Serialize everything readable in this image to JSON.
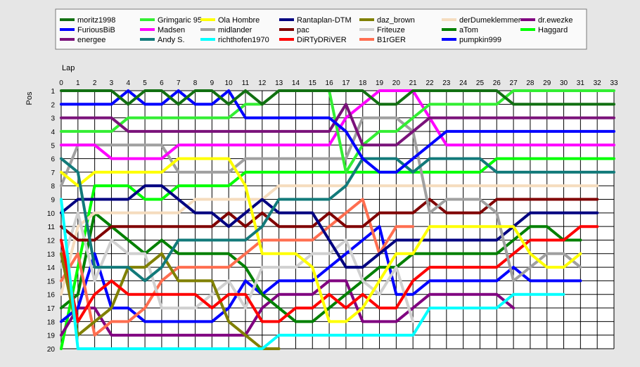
{
  "chart_data": {
    "type": "line",
    "xlabel": "Lap",
    "ylabel": "Pos",
    "x": [
      0,
      1,
      2,
      3,
      4,
      5,
      6,
      7,
      8,
      9,
      10,
      11,
      12,
      13,
      14,
      15,
      16,
      17,
      18,
      19,
      20,
      21,
      22,
      23,
      24,
      25,
      26,
      27,
      28,
      29,
      30,
      31,
      32,
      33
    ],
    "xlim": [
      0,
      33
    ],
    "ylim": [
      1,
      20
    ],
    "y_inverted": true,
    "y_ticks": [
      1,
      2,
      3,
      4,
      5,
      6,
      7,
      8,
      9,
      10,
      11,
      12,
      13,
      14,
      15,
      16,
      17,
      18,
      19,
      20
    ],
    "grid": true,
    "legend_position": "top",
    "series": [
      {
        "name": "moritz1998",
        "color": "#127012",
        "values": [
          1,
          1,
          1,
          1,
          2,
          1,
          1,
          2,
          1,
          1,
          2,
          1,
          2,
          1,
          1,
          1,
          1,
          1,
          1,
          2,
          2,
          1,
          1,
          1,
          1,
          1,
          1,
          2,
          2,
          2,
          2,
          2,
          2,
          2
        ]
      },
      {
        "name": "FuriousBiB",
        "color": "#0000ff",
        "values": [
          2,
          2,
          2,
          2,
          1,
          2,
          2,
          1,
          2,
          2,
          1,
          3,
          3,
          3,
          3,
          3,
          3,
          4,
          6,
          7,
          7,
          6,
          5,
          4,
          4,
          4,
          4,
          4,
          4,
          4,
          4,
          4,
          4,
          4
        ]
      },
      {
        "name": "energee",
        "color": "#7a127a",
        "values": [
          3,
          3,
          3,
          3,
          4,
          4,
          4,
          4,
          4,
          4,
          4,
          4,
          4,
          4,
          4,
          4,
          4,
          2,
          5,
          5,
          5,
          4,
          3,
          3,
          3,
          3,
          3,
          3,
          3,
          3,
          3,
          3,
          3,
          3
        ]
      },
      {
        "name": "Grimgaric 95",
        "color": "#33ee33",
        "values": [
          4,
          4,
          4,
          4,
          3,
          3,
          3,
          3,
          3,
          3,
          3,
          2,
          2,
          1,
          1,
          1,
          1,
          7,
          5,
          4,
          4,
          3,
          2,
          2,
          2,
          2,
          2,
          1,
          1,
          1,
          1,
          1,
          1,
          1
        ]
      },
      {
        "name": "Madsen",
        "color": "#ff00ff",
        "values": [
          5,
          5,
          5,
          6,
          6,
          6,
          6,
          5,
          5,
          5,
          5,
          5,
          5,
          5,
          5,
          5,
          5,
          3,
          2,
          1,
          1,
          1,
          3,
          5,
          5,
          5,
          5,
          5,
          5,
          5,
          5,
          5,
          5,
          5
        ]
      },
      {
        "name": "Andy S.",
        "color": "#127a7a",
        "values": [
          6,
          7,
          14,
          14,
          14,
          15,
          14,
          12,
          12,
          12,
          12,
          12,
          11,
          9,
          9,
          9,
          9,
          8,
          6,
          6,
          6,
          7,
          6,
          6,
          6,
          6,
          7,
          7,
          7,
          7,
          7,
          7,
          7,
          7
        ]
      },
      {
        "name": "Ola Hombre",
        "color": "#ffff00",
        "values": [
          7,
          8,
          7,
          7,
          7,
          7,
          7,
          6,
          6,
          6,
          6,
          8,
          13,
          13,
          13,
          14,
          18,
          18,
          17,
          15,
          13,
          13,
          11,
          11,
          11,
          11,
          11,
          11,
          13,
          14,
          14,
          13,
          null,
          null
        ]
      },
      {
        "name": "midlander",
        "color": "#a0a0a0",
        "values": [
          8,
          5,
          5,
          5,
          5,
          5,
          5,
          7,
          7,
          7,
          7,
          6,
          6,
          6,
          6,
          6,
          6,
          6,
          3,
          3,
          3,
          4,
          10,
          9,
          9,
          9,
          10,
          15,
          14,
          13,
          13,
          14,
          null,
          null
        ]
      },
      {
        "name": "richthofen1970",
        "color": "#00ffff",
        "values": [
          9,
          20,
          20,
          20,
          20,
          20,
          20,
          20,
          20,
          20,
          20,
          20,
          20,
          19,
          19,
          19,
          19,
          19,
          19,
          19,
          19,
          19,
          17,
          17,
          17,
          17,
          17,
          16,
          16,
          16,
          16,
          null,
          null,
          null
        ]
      },
      {
        "name": "Rantaplan-DTM",
        "color": "#000080",
        "values": [
          10,
          9,
          9,
          9,
          9,
          8,
          8,
          9,
          10,
          10,
          11,
          10,
          9,
          10,
          10,
          10,
          12,
          14,
          14,
          13,
          12,
          12,
          12,
          12,
          12,
          12,
          12,
          11,
          10,
          10,
          10,
          10,
          10,
          null
        ]
      },
      {
        "name": "pac",
        "color": "#800000",
        "values": [
          11,
          12,
          12,
          11,
          11,
          11,
          11,
          11,
          11,
          11,
          10,
          11,
          10,
          11,
          11,
          11,
          10,
          11,
          11,
          10,
          10,
          10,
          9,
          10,
          10,
          10,
          9,
          9,
          9,
          9,
          9,
          9,
          9,
          null
        ]
      },
      {
        "name": "DiRTyDRiVER",
        "color": "#ff0000",
        "values": [
          12,
          18,
          16,
          15,
          16,
          16,
          16,
          16,
          16,
          17,
          16,
          16,
          18,
          18,
          17,
          17,
          16,
          17,
          16,
          17,
          17,
          15,
          14,
          14,
          14,
          14,
          14,
          13,
          12,
          12,
          12,
          11,
          11,
          null
        ]
      },
      {
        "name": "daz_brown",
        "color": "#808000",
        "values": [
          13,
          19,
          18,
          17,
          14,
          14,
          13,
          15,
          15,
          15,
          18,
          19,
          20,
          20,
          null,
          null,
          null,
          null,
          null,
          null,
          null,
          null,
          null,
          null,
          null,
          null,
          null,
          null,
          null,
          null,
          null,
          null,
          null,
          null
        ]
      },
      {
        "name": "Friteuze",
        "color": "#d0d0d0",
        "values": [
          14,
          10,
          15,
          12,
          13,
          13,
          17,
          17,
          17,
          16,
          15,
          17,
          14,
          14,
          14,
          13,
          13,
          12,
          15,
          16,
          14,
          18,
          null,
          null,
          null,
          null,
          null,
          null,
          null,
          null,
          null,
          null,
          null,
          null
        ]
      },
      {
        "name": "B1rGER",
        "color": "#ff6e50",
        "values": [
          15,
          13,
          19,
          18,
          18,
          17,
          15,
          14,
          14,
          14,
          14,
          13,
          12,
          12,
          12,
          12,
          11,
          10,
          9,
          13,
          11,
          11,
          null,
          null,
          null,
          null,
          null,
          null,
          null,
          null,
          null,
          null,
          null,
          null
        ]
      },
      {
        "name": "derDumeklemmer",
        "color": "#f5dcbe",
        "values": [
          16,
          11,
          10,
          10,
          10,
          10,
          10,
          10,
          9,
          9,
          9,
          9,
          9,
          8,
          8,
          8,
          8,
          8,
          8,
          8,
          8,
          8,
          8,
          8,
          8,
          8,
          8,
          8,
          8,
          8,
          8,
          8,
          8,
          null
        ]
      },
      {
        "name": "aTom",
        "color": "#008000",
        "values": [
          17,
          16,
          10,
          11,
          12,
          13,
          12,
          13,
          13,
          13,
          13,
          14,
          16,
          17,
          18,
          18,
          17,
          16,
          15,
          14,
          14,
          13,
          13,
          13,
          13,
          13,
          13,
          12,
          11,
          11,
          12,
          12,
          null,
          null
        ]
      },
      {
        "name": "pumpkin999",
        "color": "#0000ff",
        "values": [
          18,
          17,
          13,
          17,
          17,
          18,
          18,
          18,
          18,
          18,
          17,
          15,
          16,
          15,
          15,
          15,
          14,
          13,
          12,
          11,
          16,
          16,
          15,
          15,
          15,
          15,
          15,
          14,
          15,
          15,
          15,
          15,
          null,
          null
        ]
      },
      {
        "name": "dr.ewezke",
        "color": "#800080",
        "values": [
          19,
          17,
          17,
          19,
          19,
          19,
          19,
          19,
          19,
          19,
          19,
          19,
          17,
          16,
          16,
          16,
          15,
          15,
          18,
          18,
          18,
          17,
          16,
          16,
          16,
          16,
          16,
          17,
          null,
          null,
          null,
          null,
          null,
          null
        ]
      },
      {
        "name": "Haggard",
        "color": "#00ff00",
        "values": [
          20,
          14,
          8,
          8,
          8,
          9,
          9,
          8,
          8,
          8,
          8,
          7,
          7,
          7,
          7,
          7,
          7,
          7,
          7,
          7,
          7,
          7,
          7,
          7,
          7,
          7,
          6,
          6,
          6,
          6,
          6,
          6,
          6,
          6
        ]
      }
    ]
  }
}
